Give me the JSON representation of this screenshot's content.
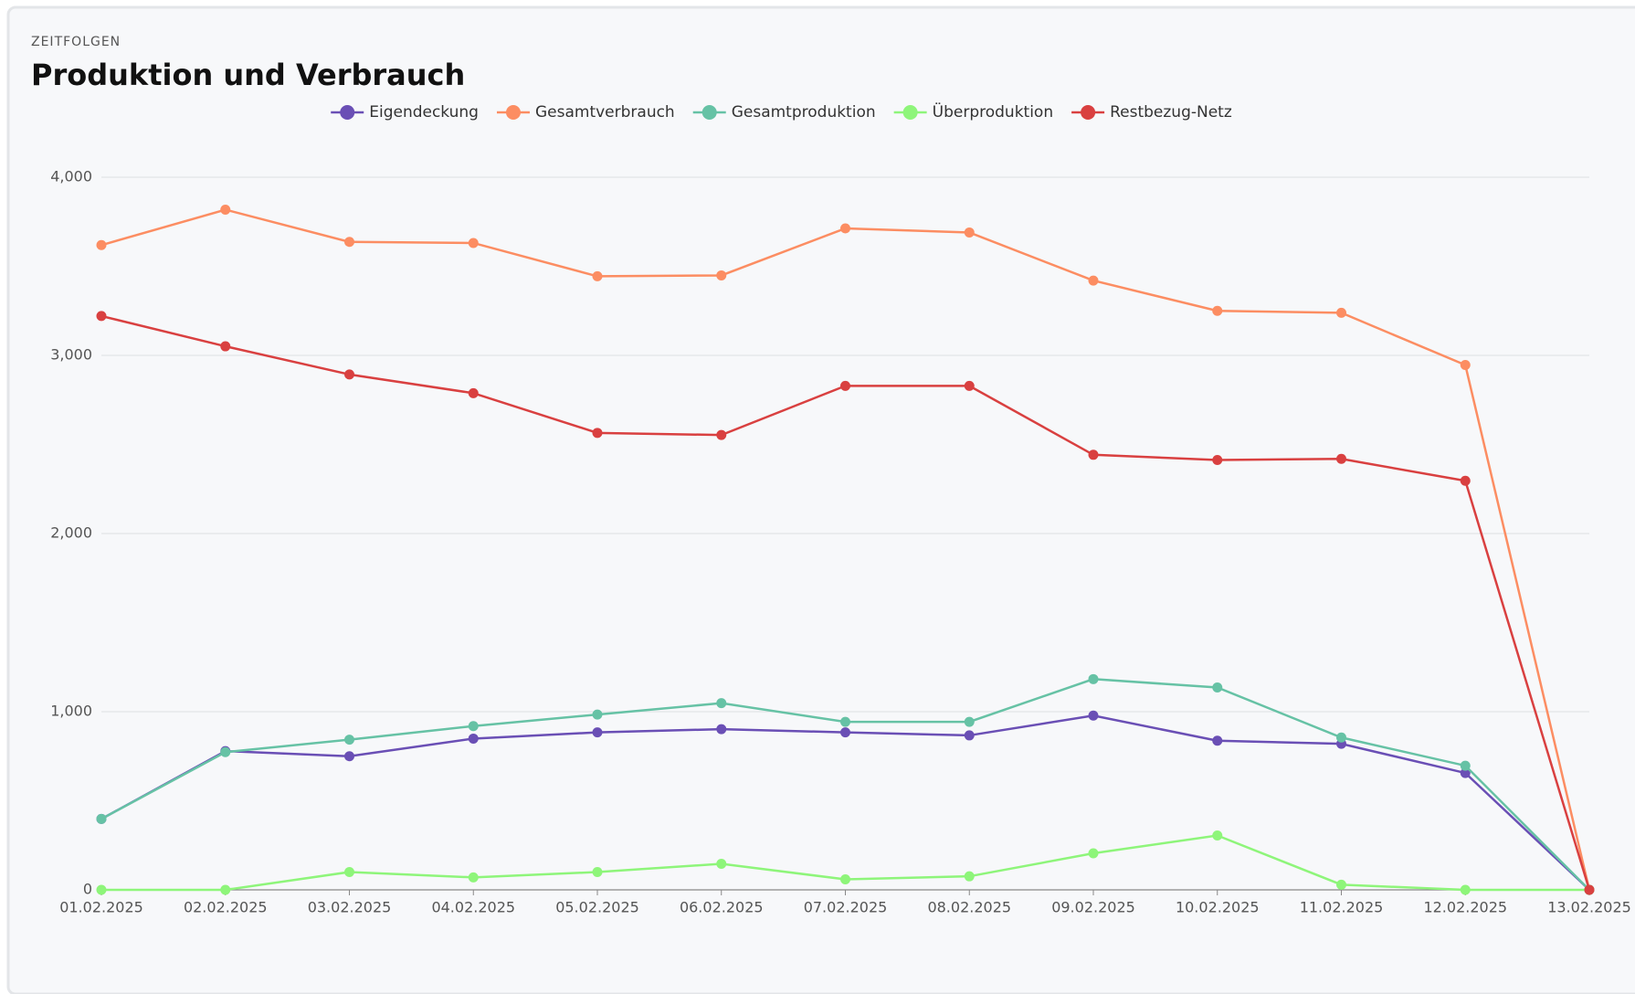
{
  "chart_data": {
    "type": "line",
    "section_label": "ZEITFOLGEN",
    "title": "Produktion und Verbrauch",
    "categories": [
      "01.02.2025",
      "02.02.2025",
      "03.02.2025",
      "04.02.2025",
      "05.02.2025",
      "06.02.2025",
      "07.02.2025",
      "08.02.2025",
      "09.02.2025",
      "10.02.2025",
      "11.02.2025",
      "12.02.2025",
      "13.02.2025"
    ],
    "series": [
      {
        "name": "Eigendeckung",
        "color": "#6a4fb5",
        "values": [
          398,
          779,
          750,
          849,
          884,
          902,
          884,
          867,
          978,
          837,
          820,
          656,
          0
        ]
      },
      {
        "name": "Gesamtverbrauch",
        "color": "#fc8d62",
        "values": [
          3619,
          3818,
          3637,
          3631,
          3444,
          3449,
          3713,
          3690,
          3420,
          3250,
          3239,
          2946,
          0
        ]
      },
      {
        "name": "Gesamtproduktion",
        "color": "#66c2a5",
        "values": [
          398,
          773,
          843,
          919,
          984,
          1048,
          943,
          943,
          1183,
          1136,
          855,
          697,
          0
        ]
      },
      {
        "name": "Überproduktion",
        "color": "#8ef57a",
        "values": [
          0,
          0,
          100,
          70,
          100,
          146,
          59,
          76,
          205,
          305,
          29,
          0,
          0
        ]
      },
      {
        "name": "Restbezug-Netz",
        "color": "#d94040",
        "values": [
          3221,
          3051,
          2893,
          2788,
          2565,
          2553,
          2829,
          2829,
          2442,
          2413,
          2419,
          2296,
          0
        ]
      }
    ],
    "ylim": [
      0,
      4000
    ],
    "yticks": [
      0,
      {
        "value": 1000,
        "label": "1,000"
      },
      {
        "value": 2000,
        "label": "2,000"
      },
      {
        "value": 3000,
        "label": "3,000"
      },
      {
        "value": 4000,
        "label": "4,000"
      }
    ],
    "grid": true
  }
}
